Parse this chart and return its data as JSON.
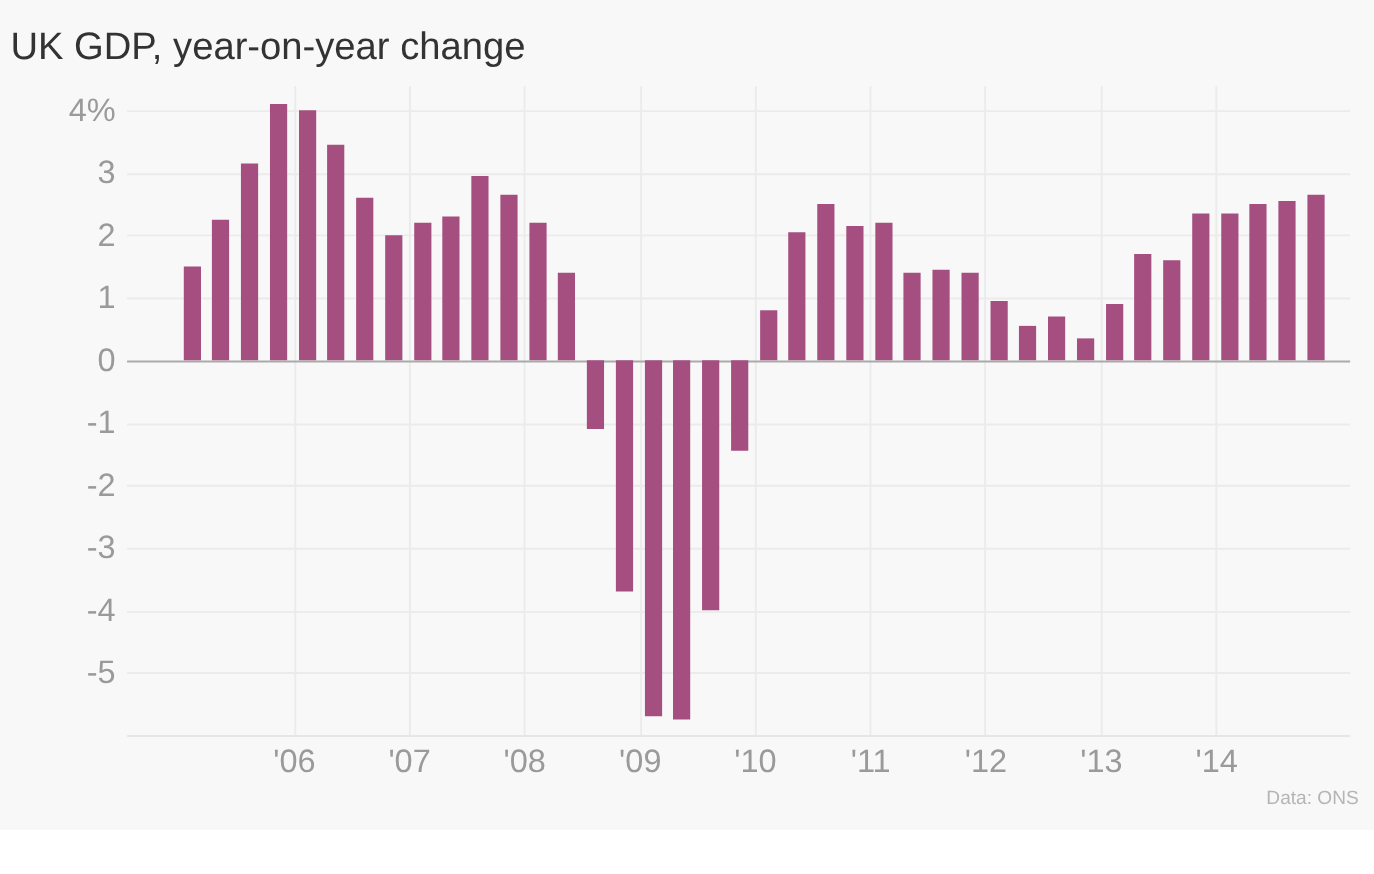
{
  "chart_data": {
    "type": "bar",
    "title": "UK GDP, year-on-year change",
    "x": [
      "2005-02-15",
      "2005-05-15",
      "2005-08-15",
      "2005-11-15",
      "2006-02-15",
      "2006-05-15",
      "2006-08-15",
      "2006-11-15",
      "2007-02-15",
      "2007-05-15",
      "2007-08-15",
      "2007-11-15",
      "2008-02-15",
      "2008-05-15",
      "2008-08-15",
      "2008-11-15",
      "2009-02-15",
      "2009-05-15",
      "2009-08-15",
      "2009-11-15",
      "2010-02-15",
      "2010-05-15",
      "2010-08-15",
      "2010-11-15",
      "2011-02-15",
      "2011-05-15",
      "2011-08-15",
      "2011-11-15",
      "2012-02-15",
      "2012-05-15",
      "2012-08-15",
      "2012-11-15",
      "2013-02-15",
      "2013-05-15",
      "2013-08-15",
      "2013-11-15",
      "2014-02-15",
      "2014-05-15",
      "2014-08-15",
      "2014-11-15"
    ],
    "series": [
      {
        "color": "#a54f80",
        "values": [
          1.5,
          2.25,
          3.15,
          4.1,
          4.0,
          3.45,
          2.6,
          2.0,
          2.2,
          2.3,
          2.95,
          2.65,
          2.2,
          1.4,
          -1.1,
          -3.7,
          -5.7,
          -5.75,
          -4.0,
          -1.45,
          0.8,
          2.05,
          2.5,
          2.15,
          2.2,
          1.4,
          1.45,
          1.4,
          0.95,
          0.55,
          0.7,
          0.35,
          0.9,
          1.7,
          1.6,
          2.35,
          2.35,
          2.5,
          2.55,
          2.65
        ]
      }
    ],
    "xlim": [
      "2004-07-20",
      "2015-02-28"
    ],
    "xticks": [
      {
        "value": "2006-01-01",
        "label": "'06"
      },
      {
        "value": "2007-01-01",
        "label": "'07"
      },
      {
        "value": "2008-01-01",
        "label": "'08"
      },
      {
        "value": "2009-01-01",
        "label": "'09"
      },
      {
        "value": "2010-01-01",
        "label": "'10"
      },
      {
        "value": "2011-01-01",
        "label": "'11"
      },
      {
        "value": "2012-01-01",
        "label": "'12"
      },
      {
        "value": "2013-01-01",
        "label": "'13"
      },
      {
        "value": "2014-01-01",
        "label": "'14"
      }
    ],
    "ylim": [
      -6,
      4.4
    ],
    "yticks": [
      -5,
      -4,
      -3,
      -2,
      -1,
      0,
      1,
      2,
      3,
      {
        "value": 4,
        "label": "4%"
      }
    ],
    "grid": true,
    "annotations": [
      "Data: ONS"
    ]
  }
}
